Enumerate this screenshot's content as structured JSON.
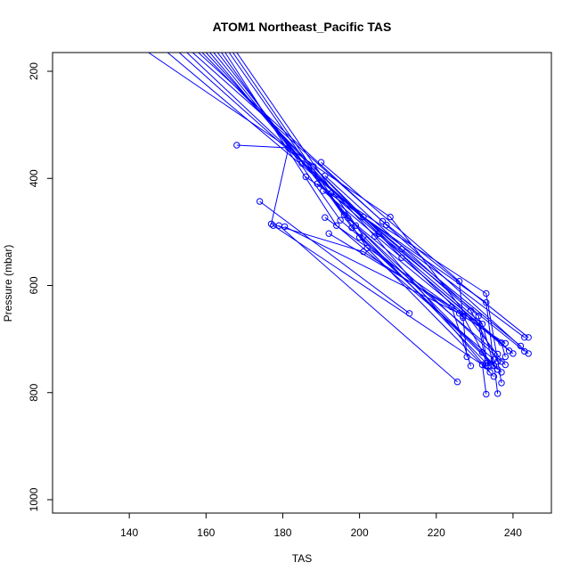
{
  "chart_data": {
    "type": "line",
    "title": "ATOM1 Northeast_Pacific TAS",
    "xlabel": "TAS",
    "ylabel": "Pressure (mbar)",
    "xlim": [
      120,
      250
    ],
    "ylim": [
      1025,
      165
    ],
    "y_reversed": true,
    "x_ticks": [
      "140",
      "160",
      "180",
      "200",
      "220",
      "240"
    ],
    "y_ticks": [
      "200",
      "400",
      "600",
      "800",
      "1000"
    ],
    "grid": false,
    "color": "#0000ff",
    "series": [
      {
        "x": [
          145.0,
          208.0,
          238.0
        ],
        "y": [
          165,
          472,
          748
        ]
      },
      {
        "x": [
          150.0,
          211.0,
          242.0
        ],
        "y": [
          165,
          532,
          713
        ]
      },
      {
        "x": [
          153.0,
          201.0,
          243.0
        ],
        "y": [
          165,
          472,
          697
        ]
      },
      {
        "x": [
          155.0,
          205.0,
          243.0
        ],
        "y": [
          165,
          503,
          723
        ]
      },
      {
        "x": [
          156.5,
          206.0,
          244.0
        ],
        "y": [
          165,
          480,
          697
        ]
      },
      {
        "x": [
          158.0,
          207.0,
          244.0
        ],
        "y": [
          165,
          487,
          727
        ]
      },
      {
        "x": [
          159.0,
          211.0,
          240.0
        ],
        "y": [
          165,
          548,
          727
        ]
      },
      {
        "x": [
          160.0,
          204.0,
          234.0
        ],
        "y": [
          165,
          508,
          762
        ]
      },
      {
        "x": [
          161.0,
          199.0,
          237.0
        ],
        "y": [
          165,
          488,
          762
        ]
      },
      {
        "x": [
          162.0,
          197.0,
          239.0
        ],
        "y": [
          165,
          474,
          722
        ]
      },
      {
        "x": [
          163.0,
          196.0,
          237.0
        ],
        "y": [
          165,
          468,
          742
        ]
      },
      {
        "x": [
          164.0,
          195.0,
          236.0
        ],
        "y": [
          165,
          478,
          728
        ]
      },
      {
        "x": [
          165.0,
          194.0,
          235.0
        ],
        "y": [
          165,
          488,
          738
        ]
      },
      {
        "x": [
          166.0,
          198.0,
          236.0
        ],
        "y": [
          165,
          492,
          757
        ]
      },
      {
        "x": [
          167.0,
          202.0,
          235.0
        ],
        "y": [
          165,
          530,
          770
        ]
      },
      {
        "x": [
          168.0,
          201.0,
          233.0
        ],
        "y": [
          165,
          508,
          745
        ]
      },
      {
        "x": [
          168.0,
          181.5,
          177.0,
          201.0,
          238.0
        ],
        "y": [
          338,
          343,
          485,
          537,
          708
        ]
      },
      {
        "x": [
          174.0,
          213.0
        ],
        "y": [
          443,
          652
        ]
      },
      {
        "x": [
          177.5,
          232.0,
          233.0
        ],
        "y": [
          488,
          748,
          803
        ]
      },
      {
        "x": [
          186.0,
          233.0,
          236.0
        ],
        "y": [
          397,
          632,
          802
        ]
      },
      {
        "x": [
          189.0,
          233.0,
          237.0
        ],
        "y": [
          410,
          615,
          782
        ]
      },
      {
        "x": [
          190.0,
          226.0,
          228.0
        ],
        "y": [
          370,
          592,
          733
        ]
      },
      {
        "x": [
          191.0,
          224.0,
          229.0
        ],
        "y": [
          473,
          640,
          750
        ]
      },
      {
        "x": [
          192.0,
          231.0,
          233.0
        ],
        "y": [
          503,
          670,
          750
        ]
      },
      {
        "x": [
          191.0,
          231.0,
          233.5
        ],
        "y": [
          395,
          657,
          750
        ]
      },
      {
        "x": [
          192.5,
          232.0,
          235.0
        ],
        "y": [
          428,
          672,
          750
        ]
      },
      {
        "x": [
          185.0,
          229.0,
          236.0
        ],
        "y": [
          372,
          647,
          742
        ]
      },
      {
        "x": [
          188.0,
          227.0,
          234.0
        ],
        "y": [
          378,
          657,
          750
        ]
      },
      {
        "x": [
          190.5,
          237.0,
          238.0
        ],
        "y": [
          423,
          707,
          733
        ]
      },
      {
        "x": [
          200.0,
          232.0,
          235.0
        ],
        "y": [
          510,
          725,
          750
        ]
      },
      {
        "x": [
          180.5,
          226.0,
          227.0
        ],
        "y": [
          490,
          652,
          660
        ]
      },
      {
        "x": [
          179.0,
          225.5
        ],
        "y": [
          488,
          780
        ]
      }
    ]
  }
}
